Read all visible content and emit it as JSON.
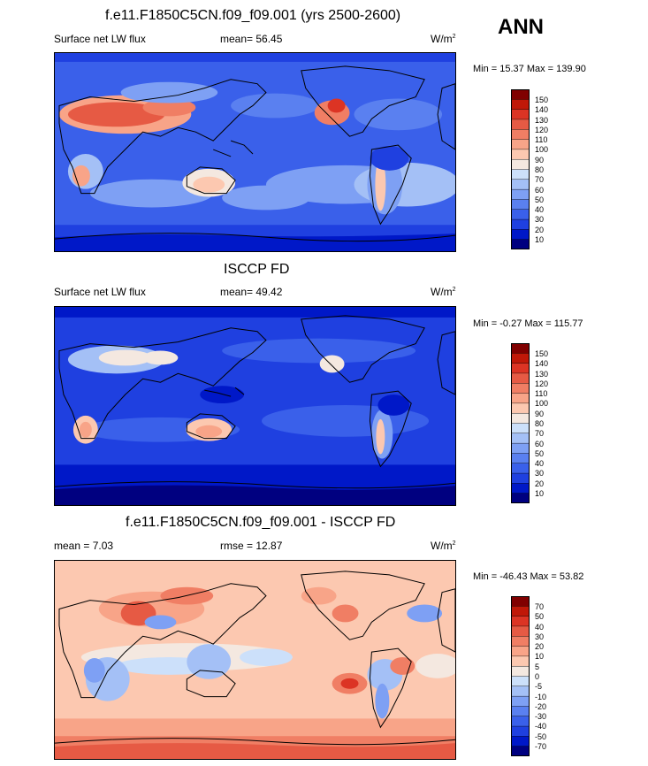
{
  "colors": {
    "scale": [
      "#000080",
      "#0018c8",
      "#1f40e0",
      "#3a60ea",
      "#5a80f0",
      "#7ea0f4",
      "#a4c0f6",
      "#cce0fa",
      "#f4e8e0",
      "#fcc8b0",
      "#f8a488",
      "#f07e64",
      "#e65a44",
      "#dc3424",
      "#c01808",
      "#800000"
    ],
    "land_outline": "#000000"
  },
  "header": {
    "ann_label": "ANN"
  },
  "panels": [
    {
      "title": "f.e11.F1850C5CN.f09_f09.001 (yrs 2500-2600)",
      "left_label": "Surface net LW flux",
      "center_label": "mean=  56.45",
      "units": "W/m",
      "units_sup": "2",
      "minmax": "Min =  15.37 Max = 139.90",
      "colorbar_levels": [
        "150",
        "140",
        "130",
        "120",
        "110",
        "100",
        "90",
        "80",
        "70",
        "60",
        "50",
        "40",
        "30",
        "20",
        "10"
      ]
    },
    {
      "title": "ISCCP FD",
      "left_label": "Surface net LW flux",
      "center_label": "mean=  49.42",
      "units": "W/m",
      "units_sup": "2",
      "minmax": "Min =  -0.27 Max = 115.77",
      "colorbar_levels": [
        "150",
        "140",
        "130",
        "120",
        "110",
        "100",
        "90",
        "80",
        "70",
        "60",
        "50",
        "40",
        "30",
        "20",
        "10"
      ]
    },
    {
      "title": "f.e11.F1850C5CN.f09_f09.001 - ISCCP FD",
      "left_label": "mean =   7.03",
      "center_label": "rmse =  12.87",
      "units": "W/m",
      "units_sup": "2",
      "minmax": "Min = -46.43 Max =  53.82",
      "colorbar_levels": [
        "70",
        "50",
        "40",
        "30",
        "20",
        "10",
        "5",
        "0",
        "-5",
        "-10",
        "-20",
        "-30",
        "-40",
        "-50",
        "-70"
      ]
    }
  ],
  "chart_data": [
    {
      "type": "heatmap",
      "title": "f.e11.F1850C5CN.f09_f09.001 (yrs 2500-2600)",
      "variable": "Surface net LW flux",
      "mean": 56.45,
      "min": 15.37,
      "max": 139.9,
      "units": "W/m2",
      "levels": [
        10,
        20,
        30,
        40,
        50,
        60,
        70,
        80,
        90,
        100,
        110,
        120,
        130,
        140,
        150
      ]
    },
    {
      "type": "heatmap",
      "title": "ISCCP FD",
      "variable": "Surface net LW flux",
      "mean": 49.42,
      "min": -0.27,
      "max": 115.77,
      "units": "W/m2",
      "levels": [
        10,
        20,
        30,
        40,
        50,
        60,
        70,
        80,
        90,
        100,
        110,
        120,
        130,
        140,
        150
      ]
    },
    {
      "type": "heatmap",
      "title": "f.e11.F1850C5CN.f09_f09.001 - ISCCP FD",
      "mean": 7.03,
      "rmse": 12.87,
      "min": -46.43,
      "max": 53.82,
      "units": "W/m2",
      "levels": [
        -70,
        -50,
        -40,
        -30,
        -20,
        -10,
        -5,
        0,
        5,
        10,
        20,
        30,
        40,
        50,
        70
      ]
    }
  ]
}
